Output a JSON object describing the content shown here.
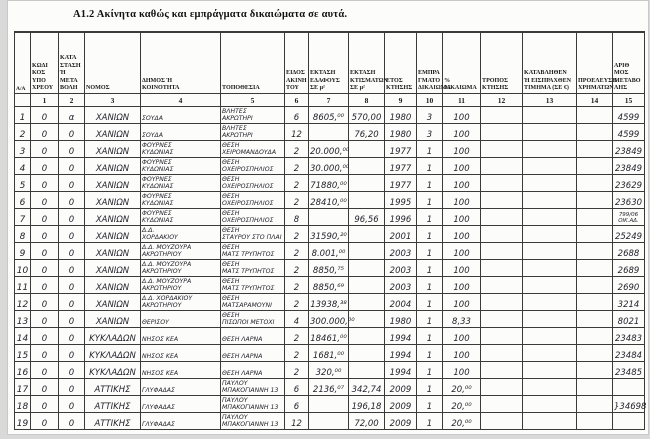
{
  "page": {
    "title": "Α1.2 Ακίνητα καθώς και εμπράγματα δικαιώματα σε αυτά."
  },
  "table": {
    "columns": [
      {
        "num": "",
        "label": "Α/Α"
      },
      {
        "num": "1",
        "label": "ΚΩΔΙ\nΚΟΣ\nΥΠΟ\nΧΡΕΟΥ"
      },
      {
        "num": "2",
        "label": "ΚΑΤΑ\nΣΤΑΣΗ\nΉ\nΜΕΤΑ\nΒΟΛΗ"
      },
      {
        "num": "3",
        "label": "ΝΟΜΟΣ"
      },
      {
        "num": "4",
        "label": "ΔΗΜΟΣ Ή\nΚΟΙΝΟΤΗΤΑ"
      },
      {
        "num": "5",
        "label": "ΤΟΠΟΘΕΣΙΑ"
      },
      {
        "num": "6",
        "label": "ΕΙΔΟΣ\nΑΚΙΝΗ\nΤΟΥ"
      },
      {
        "num": "7",
        "label": "ΕΚΤΑΣΗ\nΕΔΑΦΟΥΣ\nΣΕ μ²"
      },
      {
        "num": "8",
        "label": "ΕΚΤΑΣΗ\nΚΤΙΣΜΑΤΩΝ\nΣΕ μ²"
      },
      {
        "num": "9",
        "label": "ΕΤΟΣ\nΚΤΗΣΗΣ"
      },
      {
        "num": "10",
        "label": "ΕΜΠΡΑ\nΓΜΑΤΟ\nΔΙΚΑΙΩΜΑ"
      },
      {
        "num": "11",
        "label": "%\nΔΙΚΑΙΩΜΑ"
      },
      {
        "num": "12",
        "label": "ΤΡΟΠΟΣ\nΚΤΗΣΗΣ"
      },
      {
        "num": "13",
        "label": "ΚΑΤΑΒΛΗΘΕΝ\nΉ ΕΙΣΠΡΑΧΘΕΝ\nΤΙΜΗΜΑ (ΣΕ €)"
      },
      {
        "num": "14",
        "label": "ΠΡΟΕΛΕΥΣΗ\nΧΡΗΜΑΤΩΝ"
      },
      {
        "num": "15",
        "label": "ΑΡΙΘ\nΜΟΣ\nΜΕΤΑΒΟ\nΛΗΣ"
      }
    ],
    "rows": [
      [
        "1",
        "0",
        "α",
        "ΧΑΝΙΩΝ",
        "ΣΟΥΔΑ",
        "ΒΛΗΤΕΣ\nΑΚΡΩΤΗΡΙ",
        "6",
        "8605,⁰⁰",
        "570,00",
        "1980",
        "3",
        "100",
        "",
        "",
        "",
        "4599"
      ],
      [
        "2",
        "0",
        "0",
        "ΧΑΝΙΩΝ",
        "ΣΟΥΔΑ",
        "ΒΛΗΤΕΣ\nΑΚΡΩΤΗΡΙ",
        "12",
        "",
        "76,20",
        "1980",
        "3",
        "100",
        "",
        "",
        "",
        "4599"
      ],
      [
        "3",
        "0",
        "0",
        "ΧΑΝΙΩΝ",
        "ΦΟΥΡΝΕΣ\nΚΥΔΩΝΙΑΣ",
        "ΘΕΣΗ\nΧΕΙΡΟΜΑΝΔΟΥΔΑ",
        "2",
        "20.000,⁰⁰",
        "",
        "1977",
        "1",
        "100",
        "",
        "",
        "",
        "23849"
      ],
      [
        "4",
        "0",
        "0",
        "ΧΑΝΙΩΝ",
        "ΦΟΥΡΝΕΣ\nΚΥΔΩΝΙΑΣ",
        "ΘΕΣΗ\nΟΧΕΙΡΟΣΠΗΛΙΟΣ",
        "2",
        "30.000,⁰⁰",
        "",
        "1977",
        "1",
        "100",
        "",
        "",
        "",
        "23849"
      ],
      [
        "5",
        "0",
        "0",
        "ΧΑΝΙΩΝ",
        "ΦΟΥΡΝΕΣ\nΚΥΔΩΝΙΑΣ",
        "ΘΕΣΗ\nΟΧΕΙΡΟΣΠΗΛΙΟΣ",
        "2",
        "71880,⁰⁰",
        "",
        "1977",
        "1",
        "100",
        "",
        "",
        "",
        "23629"
      ],
      [
        "6",
        "0",
        "0",
        "ΧΑΝΙΩΝ",
        "ΦΟΥΡΝΕΣ\nΚΥΔΩΝΙΑΣ",
        "ΘΕΣΗ\nΟΧΕΙΡΟΣΠΗΛΙΟΣ",
        "2",
        "28410,⁰⁰",
        "",
        "1995",
        "1",
        "100",
        "",
        "",
        "",
        "23630"
      ],
      [
        "7",
        "0",
        "0",
        "ΧΑΝΙΩΝ",
        "ΦΟΥΡΝΕΣ\nΚΥΔΩΝΙΑΣ",
        "ΘΕΣΗ\nΟΧΕΙΡΟΣΠΗΛΙΟΣ",
        "8",
        "",
        "96,56",
        "1996",
        "1",
        "100",
        "",
        "",
        "",
        "799/06\nΟΙΚ.ΑΔ."
      ],
      [
        "8",
        "0",
        "0",
        "ΧΑΝΙΩΝ",
        "Δ.Δ.\nΧΟΡΔΑΚΙΟΥ",
        "ΘΕΣΗ\nΣΤΑΥΡΟΥ ΣΤΟ ΠΛΑΙ",
        "2",
        "31590,²⁰",
        "",
        "2001",
        "1",
        "100",
        "",
        "",
        "",
        "25249"
      ],
      [
        "9",
        "0",
        "0",
        "ΧΑΝΙΩΝ",
        "Δ.Δ. ΜΟΥΖΟΥΡΑ\nΑΚΡΩΤΗΡΙΟΥ",
        "ΘΕΣΗ\nΜΑΤΣ ΤΡΥΠΗΤΟΣ",
        "2",
        "8.001,⁰⁰",
        "",
        "2003",
        "1",
        "100",
        "",
        "",
        "",
        "2688"
      ],
      [
        "10",
        "0",
        "0",
        "ΧΑΝΙΩΝ",
        "Δ.Δ. ΜΟΥΖΟΥΡΑ\nΑΚΡΩΤΗΡΙΟΥ",
        "ΘΕΣΗ\nΜΑΤΣ ΤΡΥΠΗΤΟΣ",
        "2",
        "8850,⁷⁵",
        "",
        "2003",
        "1",
        "100",
        "",
        "",
        "",
        "2689"
      ],
      [
        "11",
        "0",
        "0",
        "ΧΑΝΙΩΝ",
        "Δ.Δ. ΜΟΥΖΟΥΡΑ\nΑΚΡΩΤΗΡΙΟΥ",
        "ΘΕΣΗ\nΜΑΤΣ ΤΡΥΠΗΤΟΣ",
        "2",
        "8850,⁶⁹",
        "",
        "2003",
        "1",
        "100",
        "",
        "",
        "",
        "2690"
      ],
      [
        "12",
        "0",
        "0",
        "ΧΑΝΙΩΝ",
        "Δ.Δ. ΧΟΡΔΑΚΙΟΥ\nΑΚΡΩΤΗΡΙΟΥ",
        "ΘΕΣΗ\nΜΑΤΣΑΡΑΜΟΥΝΙ",
        "2",
        "13938,³⁸",
        "",
        "2004",
        "1",
        "100",
        "",
        "",
        "",
        "3214"
      ],
      [
        "13",
        "0",
        "0",
        "ΧΑΝΙΩΝ",
        "ΘΕΡΙΣΟΥ",
        "ΘΕΣΗ\nΠΙΣΩΠΟΙ ΜΕΤΟΧΙ",
        "4",
        "300.000,⁰⁰",
        "",
        "1980",
        "1",
        "8,33",
        "",
        "",
        "",
        "8021"
      ],
      [
        "14",
        "0",
        "0",
        "ΚΥΚΛΑΔΩΝ",
        "ΝΗΣΟΣ ΚΕΑ",
        "ΘΕΣΗ ΛΑΡΝΑ",
        "2",
        "18461,⁰⁰",
        "",
        "1994",
        "1",
        "100",
        "",
        "",
        "",
        "23483"
      ],
      [
        "15",
        "0",
        "0",
        "ΚΥΚΛΑΔΩΝ",
        "ΝΗΣΟΣ ΚΕΑ",
        "ΘΕΣΗ ΛΑΡΝΑ",
        "2",
        "1681,⁰⁰",
        "",
        "1994",
        "1",
        "100",
        "",
        "",
        "",
        "23484"
      ],
      [
        "16",
        "0",
        "0",
        "ΚΥΚΛΑΔΩΝ",
        "ΝΗΣΟΣ ΚΕΑ",
        "ΘΕΣΗ ΛΑΡΝΑ",
        "2",
        "320,⁰⁰",
        "",
        "1994",
        "1",
        "100",
        "",
        "",
        "",
        "23485"
      ],
      [
        "17",
        "0",
        "0",
        "ΑΤΤΙΚΗΣ",
        "ΓΛΥΦΑΔΑΣ",
        "ΠΑΥΛΟΥ\nΜΠΑΚΟΓΙΑΝΝΗ 13",
        "6",
        "2136,⁰⁷",
        "342,74",
        "2009",
        "1",
        "20,⁰⁰",
        "",
        "",
        "",
        ""
      ],
      [
        "18",
        "0",
        "0",
        "ΑΤΤΙΚΗΣ",
        "ΓΛΥΦΑΔΑΣ",
        "ΠΑΥΛΟΥ\nΜΠΑΚΟΓΙΑΝΝΗ 13",
        "6",
        "",
        "196,18",
        "2009",
        "1",
        "20,⁰⁰",
        "",
        "",
        "",
        "}34698"
      ],
      [
        "19",
        "0",
        "0",
        "ΑΤΤΙΚΗΣ",
        "ΓΛΥΦΑΔΑΣ",
        "ΠΑΥΛΟΥ\nΜΠΑΚΟΓΙΑΝΝΗ 13",
        "12",
        "",
        "72,00",
        "2009",
        "1",
        "20,⁰⁰",
        "",
        "",
        "",
        ""
      ]
    ]
  }
}
